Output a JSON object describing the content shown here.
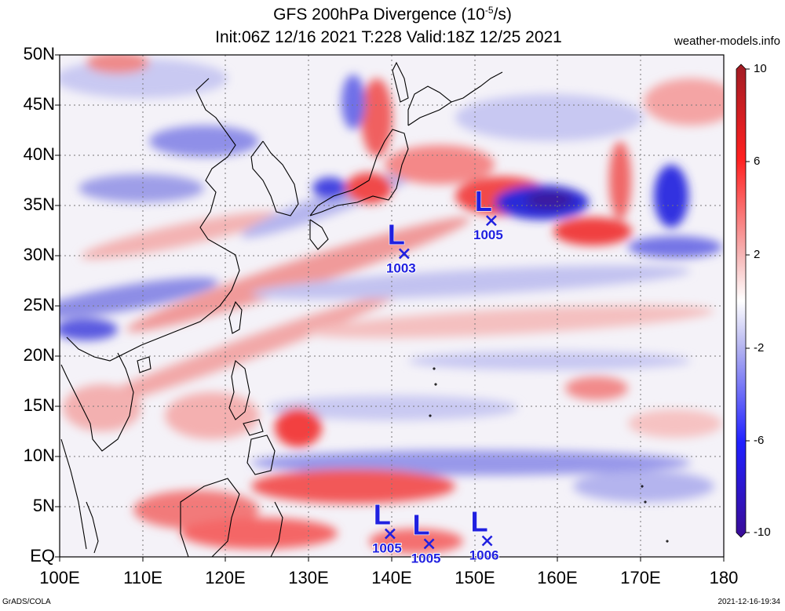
{
  "header": {
    "title_main": "GFS 200hPa Divergence (10",
    "title_exp": "-5",
    "title_unit": "/s)",
    "init_line": "Init:06Z 12/16 2021 T:228 Valid:18Z 12/25 2021",
    "site": "weather-models.info"
  },
  "axes": {
    "y_ticks": [
      "50N",
      "45N",
      "40N",
      "35N",
      "30N",
      "25N",
      "20N",
      "15N",
      "10N",
      "5N",
      "EQ"
    ],
    "x_ticks": [
      "100E",
      "110E",
      "120E",
      "130E",
      "140E",
      "150E",
      "160E",
      "170E",
      "180"
    ]
  },
  "colorbar": {
    "labels": [
      "10",
      "6",
      "2",
      "-2",
      "-6",
      "-10"
    ],
    "colors": {
      "max": "#b0202a",
      "high": "#ff1a1a",
      "mid_pos": "#f2a3a3",
      "zero": "#ffffff",
      "mid_neg": "#a9a9f0",
      "low": "#1a1aff",
      "min": "#3a10a0"
    }
  },
  "lows": [
    {
      "label": "L",
      "pressure": "1005",
      "lon": 152,
      "lat": 33.5
    },
    {
      "label": "L",
      "pressure": "1003",
      "lon": 141.5,
      "lat": 30.2
    },
    {
      "label": "L",
      "pressure": "1005",
      "lon": 139.8,
      "lat": 2.3
    },
    {
      "label": "L",
      "pressure": "1005",
      "lon": 144.5,
      "lat": 1.3
    },
    {
      "label": "L",
      "pressure": "1006",
      "lon": 151.5,
      "lat": 1.6
    }
  ],
  "footer": {
    "left": "GrADS/COLA",
    "right": "2021-12-16-19:34"
  }
}
